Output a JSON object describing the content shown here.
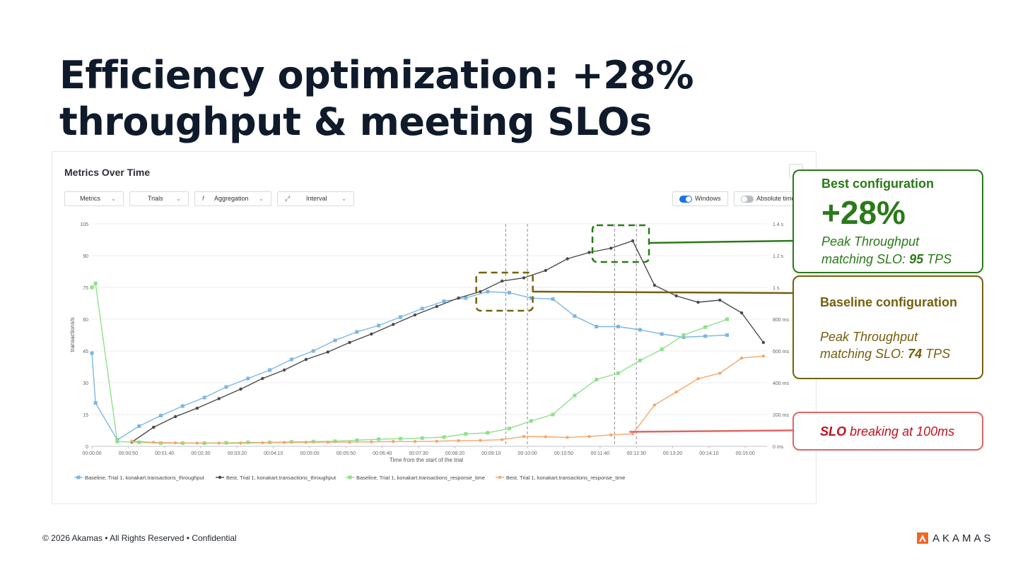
{
  "slide": {
    "title": "Efficiency optimization: +28% throughput & meeting SLOs"
  },
  "panel": {
    "title": "Metrics Over Time",
    "more_label": "...",
    "dropdowns": [
      {
        "label": "Metrics"
      },
      {
        "label": "Trials"
      },
      {
        "label": "Aggregation",
        "icon": "f"
      },
      {
        "label": "Interval"
      }
    ],
    "toggles": [
      {
        "label": "Windows",
        "on": true
      },
      {
        "label": "Absolute time",
        "on": false
      }
    ]
  },
  "chart_data": {
    "type": "line",
    "xlabel": "Time from the start of the trial",
    "ylabel": "transactions/s",
    "ylim": [
      0,
      105
    ],
    "yticks": [
      0,
      15,
      30,
      45,
      60,
      75,
      90,
      105
    ],
    "y2lim": [
      0,
      1400
    ],
    "y2ticks": [
      {
        "v": 0,
        "label": "0 ms"
      },
      {
        "v": 200,
        "label": "200 ms"
      },
      {
        "v": 400,
        "label": "400 ms"
      },
      {
        "v": 600,
        "label": "600 ms"
      },
      {
        "v": 800,
        "label": "800 ms"
      },
      {
        "v": 1000,
        "label": "1 s"
      },
      {
        "v": 1200,
        "label": "1.2 s"
      },
      {
        "v": 1400,
        "label": "1.4 s"
      }
    ],
    "xlim": [
      0,
      930
    ],
    "xticks": [
      {
        "v": 0,
        "label": "00:00:00"
      },
      {
        "v": 50,
        "label": "00:00:50"
      },
      {
        "v": 100,
        "label": "00:01:40"
      },
      {
        "v": 150,
        "label": "00:02:30"
      },
      {
        "v": 200,
        "label": "00:03:20"
      },
      {
        "v": 250,
        "label": "00:04:10"
      },
      {
        "v": 300,
        "label": "00:05:00"
      },
      {
        "v": 350,
        "label": "00:05:50"
      },
      {
        "v": 400,
        "label": "00:06:40"
      },
      {
        "v": 450,
        "label": "00:07:30"
      },
      {
        "v": 500,
        "label": "00:08:20"
      },
      {
        "v": 550,
        "label": "00:09:10"
      },
      {
        "v": 600,
        "label": "00:10:00"
      },
      {
        "v": 650,
        "label": "00:10:50"
      },
      {
        "v": 700,
        "label": "00:11:40"
      },
      {
        "v": 750,
        "label": "00:12:30"
      },
      {
        "v": 800,
        "label": "00:13:20"
      },
      {
        "v": 850,
        "label": "00:14:10"
      },
      {
        "v": 900,
        "label": "00:15:00"
      }
    ],
    "vlines": [
      570,
      600,
      720,
      750
    ],
    "series": [
      {
        "name": "Baseline, Trial 1, konakart.transactions_throughput",
        "axis": "left",
        "color": "#7fb6e2",
        "marker": "square",
        "x": [
          0,
          5,
          35,
          65,
          95,
          125,
          155,
          185,
          215,
          245,
          275,
          305,
          335,
          365,
          395,
          425,
          455,
          485,
          515,
          545,
          575,
          605,
          635,
          665,
          695,
          725,
          755,
          785,
          815,
          845,
          875
        ],
        "y": [
          44,
          20.5,
          3,
          9.5,
          14.5,
          19,
          23,
          28,
          32,
          36,
          41,
          45,
          50,
          54,
          57,
          61,
          65,
          68.5,
          70,
          73,
          72.5,
          70,
          69.5,
          61.5,
          56.5,
          56.5,
          55,
          53,
          51.5,
          52,
          52.5
        ]
      },
      {
        "name": "Best, Trial 1, konakart.transactions_throughput",
        "axis": "left",
        "color": "#4a4a4a",
        "marker": "circle",
        "x": [
          55,
          85,
          115,
          145,
          175,
          205,
          235,
          265,
          295,
          325,
          355,
          385,
          415,
          445,
          475,
          505,
          535,
          565,
          595,
          625,
          655,
          685,
          715,
          745,
          775,
          805,
          835,
          865,
          895,
          925
        ],
        "y": [
          2,
          9,
          14,
          18,
          22.5,
          27,
          32,
          36,
          41,
          44.5,
          49,
          53,
          57.5,
          62,
          66,
          70,
          73,
          78,
          79.5,
          83,
          88.5,
          91.5,
          93.5,
          97,
          76,
          71,
          68,
          69,
          63,
          49
        ]
      },
      {
        "name": "Baseline, Trial 1, konakart.transactions_response_time",
        "axis": "right",
        "color": "#8fe08b",
        "marker": "square",
        "x": [
          0,
          5,
          35,
          65,
          95,
          125,
          155,
          185,
          215,
          245,
          275,
          305,
          335,
          365,
          395,
          425,
          455,
          485,
          515,
          545,
          575,
          605,
          635,
          665,
          695,
          725,
          755,
          785,
          815,
          845,
          875
        ],
        "y": [
          1000,
          1025,
          30,
          25,
          20,
          20,
          20,
          22,
          25,
          25,
          28,
          30,
          32,
          38,
          45,
          48,
          52,
          58,
          78,
          85,
          112,
          160,
          200,
          320,
          420,
          460,
          540,
          610,
          700,
          750,
          800
        ]
      },
      {
        "name": "Best, Trial 1, konakart.transactions_response_time",
        "axis": "right",
        "color": "#f3a76d",
        "marker": "circle",
        "x": [
          55,
          85,
          115,
          145,
          175,
          205,
          235,
          265,
          295,
          325,
          355,
          385,
          415,
          445,
          475,
          505,
          535,
          565,
          595,
          625,
          655,
          685,
          715,
          745,
          775,
          805,
          835,
          865,
          895,
          925
        ],
        "y": [
          32,
          25,
          22,
          20,
          20,
          20,
          22,
          24,
          25,
          26,
          26,
          28,
          30,
          30,
          32,
          35,
          37,
          42,
          62,
          60,
          56,
          62,
          72,
          78,
          260,
          342,
          425,
          460,
          555,
          568
        ]
      }
    ]
  },
  "callouts": {
    "best": {
      "title": "Best configuration",
      "value": "+28%",
      "line1": "Peak Throughput",
      "line2_prefix": "matching SLO: ",
      "tps": "95",
      "unit": " TPS",
      "color": "#2a7a19"
    },
    "baseline": {
      "title": "Baseline configuration",
      "line1": "Peak Throughput",
      "line2_prefix": "matching SLO: ",
      "tps": "74",
      "unit": " TPS",
      "color": "#75600c"
    },
    "slo": {
      "bold": "SLO",
      "rest": " breaking at 100ms",
      "color": "#c1121f",
      "line_color": "#e06666",
      "threshold_ms": 100
    }
  },
  "footer": {
    "text": "© 2026 Akamas • All Rights Reserved  • Confidential"
  },
  "logo": {
    "text": "AKAMAS",
    "color": "#f26522"
  }
}
